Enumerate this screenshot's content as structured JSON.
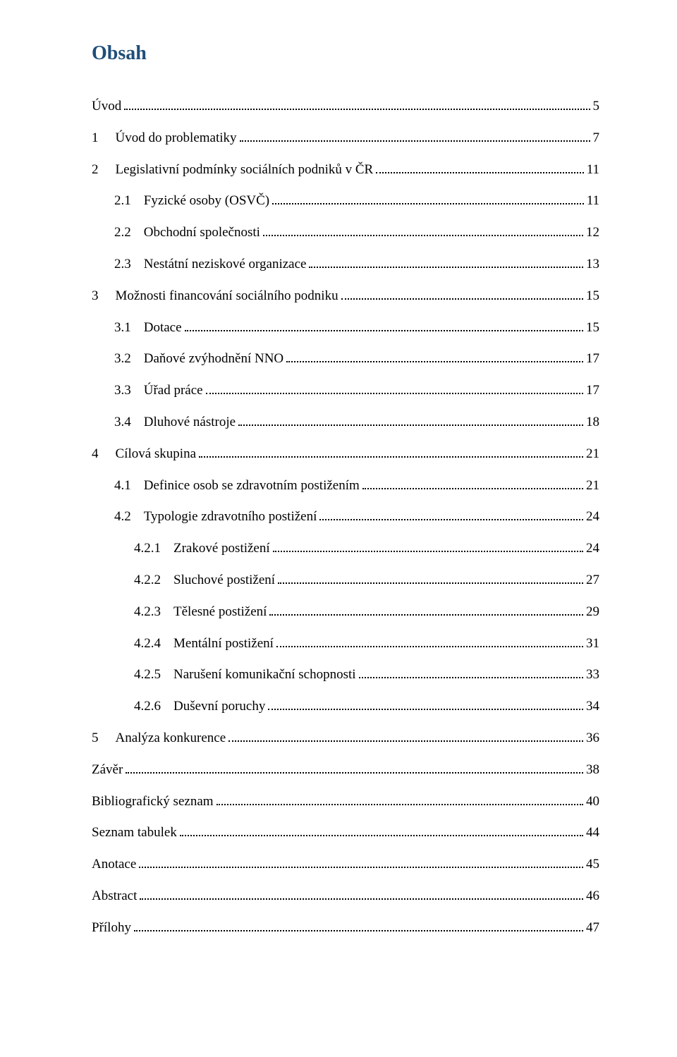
{
  "title": "Obsah",
  "title_color": "#1f4e79",
  "text_color": "#000000",
  "background_color": "#ffffff",
  "font_family": "Times New Roman",
  "title_fontsize": 28,
  "entry_fontsize": 19,
  "entries": [
    {
      "indent": 0,
      "num": "",
      "label": "Úvod",
      "page": "5"
    },
    {
      "indent": 0,
      "num": "1",
      "label": "Úvod do problematiky",
      "page": "7"
    },
    {
      "indent": 0,
      "num": "2",
      "label": "Legislativní podmínky sociálních podniků v ČR",
      "page": "11"
    },
    {
      "indent": 1,
      "num": "2.1",
      "label": "Fyzické osoby (OSVČ)",
      "page": "11"
    },
    {
      "indent": 1,
      "num": "2.2",
      "label": "Obchodní společnosti",
      "page": "12"
    },
    {
      "indent": 1,
      "num": "2.3",
      "label": "Nestátní neziskové organizace",
      "page": "13"
    },
    {
      "indent": 0,
      "num": "3",
      "label": "Možnosti financování sociálního podniku",
      "page": "15"
    },
    {
      "indent": 1,
      "num": "3.1",
      "label": "Dotace",
      "page": "15"
    },
    {
      "indent": 1,
      "num": "3.2",
      "label": "Daňové zvýhodnění NNO",
      "page": "17"
    },
    {
      "indent": 1,
      "num": "3.3",
      "label": "Úřad práce",
      "page": "17"
    },
    {
      "indent": 1,
      "num": "3.4",
      "label": "Dluhové nástroje",
      "page": "18"
    },
    {
      "indent": 0,
      "num": "4",
      "label": "Cílová skupina",
      "page": "21"
    },
    {
      "indent": 1,
      "num": "4.1",
      "label": "Definice osob se zdravotním postižením",
      "page": "21"
    },
    {
      "indent": 1,
      "num": "4.2",
      "label": "Typologie zdravotního postižení",
      "page": "24"
    },
    {
      "indent": 2,
      "num": "4.2.1",
      "label": "Zrakové postižení",
      "page": "24"
    },
    {
      "indent": 2,
      "num": "4.2.2",
      "label": "Sluchové postižení",
      "page": "27"
    },
    {
      "indent": 2,
      "num": "4.2.3",
      "label": "Tělesné postižení",
      "page": "29"
    },
    {
      "indent": 2,
      "num": "4.2.4",
      "label": "Mentální postižení",
      "page": "31"
    },
    {
      "indent": 2,
      "num": "4.2.5",
      "label": "Narušení komunikační schopnosti",
      "page": "33"
    },
    {
      "indent": 2,
      "num": "4.2.6",
      "label": "Duševní poruchy",
      "page": "34"
    },
    {
      "indent": 0,
      "num": "5",
      "label": "Analýza konkurence",
      "page": "36"
    },
    {
      "indent": 0,
      "num": "",
      "label": "Závěr",
      "page": "38"
    },
    {
      "indent": 0,
      "num": "",
      "label": "Bibliografický seznam",
      "page": "40"
    },
    {
      "indent": 0,
      "num": "",
      "label": "Seznam tabulek",
      "page": "44"
    },
    {
      "indent": 0,
      "num": "",
      "label": "Anotace",
      "page": "45"
    },
    {
      "indent": 0,
      "num": "",
      "label": "Abstract",
      "page": "46"
    },
    {
      "indent": 0,
      "num": "",
      "label": "Přílohy",
      "page": "47"
    }
  ]
}
